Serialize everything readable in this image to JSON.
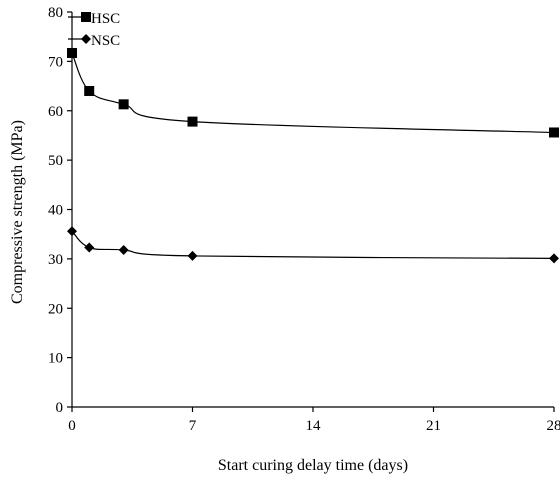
{
  "chart_data": {
    "type": "line",
    "title": "",
    "xlabel": "Start curing delay time (days)",
    "ylabel": "Compressive strength (MPa)",
    "xlim": [
      0,
      28
    ],
    "ylim": [
      0,
      80
    ],
    "x_ticks": [
      0,
      7,
      14,
      21,
      28
    ],
    "y_ticks": [
      0,
      10,
      20,
      30,
      40,
      50,
      60,
      70,
      80
    ],
    "grid": false,
    "legend_position": "top-left",
    "series": [
      {
        "name": "HSC",
        "marker": "square",
        "color": "#000000",
        "x": [
          0,
          1,
          3,
          7,
          28
        ],
        "y": [
          71.7,
          64.0,
          61.3,
          57.8,
          55.6
        ]
      },
      {
        "name": "NSC",
        "marker": "diamond",
        "color": "#000000",
        "x": [
          0,
          1,
          3,
          7,
          28
        ],
        "y": [
          35.6,
          32.3,
          31.8,
          30.6,
          30.1
        ]
      }
    ]
  }
}
